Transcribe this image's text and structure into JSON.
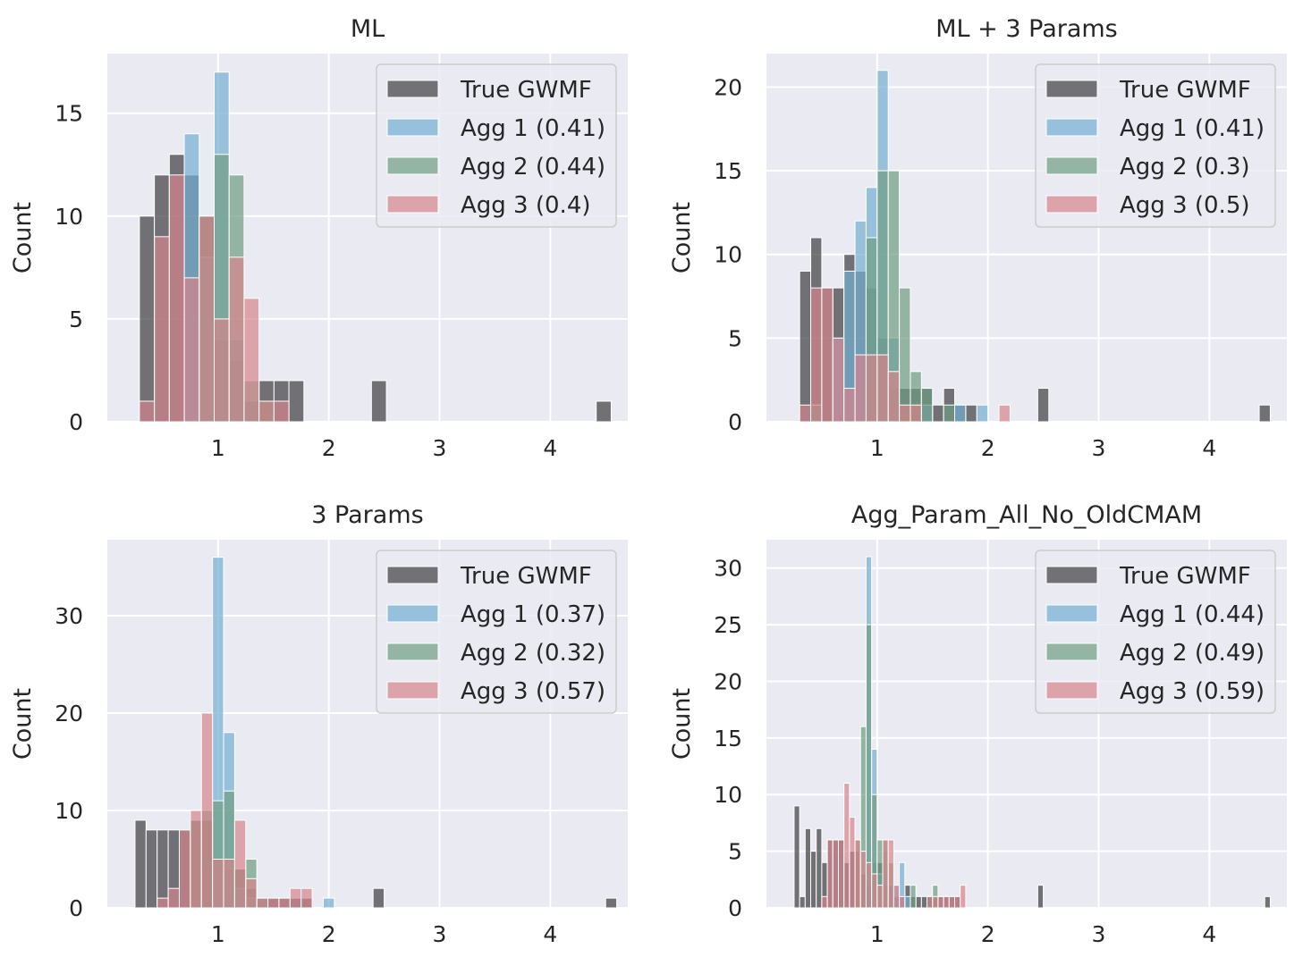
{
  "colors": {
    "panel_bg": "#EAEAF2",
    "grid": "#FFFFFF",
    "series": [
      "#3d3d40",
      "#74aed1",
      "#6f9c81",
      "#d7858b"
    ],
    "bar_alpha": 0.7,
    "bar_edge": "#FFFFFF",
    "legend_bg": "#EAEAF2",
    "legend_edge": "#CCCCCC"
  },
  "chart_data": [
    {
      "type": "bar",
      "title": "ML",
      "xlabel": "",
      "ylabel": "Count",
      "xlim": [
        0.0,
        4.7
      ],
      "ylim": [
        0,
        17.9
      ],
      "xticks": [
        1,
        2,
        3,
        4
      ],
      "yticks": [
        0,
        5,
        10,
        15
      ],
      "legend": "top-right",
      "series": [
        {
          "name": "True GWMF",
          "bin_width": 0.135,
          "bins": [
            [
              0.29,
              10
            ],
            [
              0.425,
              12
            ],
            [
              0.56,
              13
            ],
            [
              0.695,
              12
            ],
            [
              0.83,
              10
            ],
            [
              0.965,
              4
            ],
            [
              1.1,
              3
            ],
            [
              1.235,
              1
            ],
            [
              1.37,
              2
            ],
            [
              1.505,
              2
            ],
            [
              1.64,
              2
            ],
            [
              2.385,
              2
            ],
            [
              4.415,
              1
            ]
          ]
        },
        {
          "name": "Agg 1 (0.41)",
          "bin_width": 0.135,
          "bins": [
            [
              0.695,
              14
            ],
            [
              0.83,
              8
            ],
            [
              0.965,
              17
            ],
            [
              1.1,
              4
            ],
            [
              1.235,
              1
            ]
          ]
        },
        {
          "name": "Agg 2 (0.44)",
          "bin_width": 0.135,
          "bins": [
            [
              0.83,
              10
            ],
            [
              0.965,
              13
            ],
            [
              1.1,
              12
            ],
            [
              1.235,
              2
            ],
            [
              1.37,
              1
            ]
          ]
        },
        {
          "name": "Agg 3 (0.4)",
          "bin_width": 0.135,
          "bins": [
            [
              0.29,
              1
            ],
            [
              0.425,
              9
            ],
            [
              0.56,
              12
            ],
            [
              0.695,
              7
            ],
            [
              0.83,
              10
            ],
            [
              0.965,
              5
            ],
            [
              1.1,
              8
            ],
            [
              1.235,
              6
            ],
            [
              1.37,
              1
            ],
            [
              1.505,
              1
            ]
          ]
        }
      ]
    },
    {
      "type": "bar",
      "title": "ML + 3 Params",
      "xlabel": "",
      "ylabel": "Count",
      "xlim": [
        0.0,
        4.7
      ],
      "ylim": [
        0,
        22
      ],
      "xticks": [
        1,
        2,
        3,
        4
      ],
      "yticks": [
        0,
        5,
        10,
        15,
        20
      ],
      "legend": "top-right",
      "series": [
        {
          "name": "True GWMF",
          "bin_width": 0.1,
          "bins": [
            [
              0.3,
              9
            ],
            [
              0.4,
              11
            ],
            [
              0.5,
              8
            ],
            [
              0.6,
              8
            ],
            [
              0.7,
              10
            ],
            [
              0.8,
              9
            ],
            [
              0.9,
              8
            ],
            [
              1.0,
              5
            ],
            [
              1.1,
              2
            ],
            [
              1.2,
              2
            ],
            [
              1.3,
              2
            ],
            [
              1.4,
              2
            ],
            [
              1.5,
              1
            ],
            [
              1.6,
              2
            ],
            [
              1.7,
              1
            ],
            [
              1.8,
              1
            ],
            [
              2.45,
              2
            ],
            [
              4.45,
              1
            ]
          ]
        },
        {
          "name": "Agg 1 (0.41)",
          "bin_width": 0.1,
          "bins": [
            [
              0.6,
              5
            ],
            [
              0.7,
              9
            ],
            [
              0.8,
              12
            ],
            [
              0.9,
              14
            ],
            [
              1.0,
              21
            ],
            [
              1.1,
              5
            ],
            [
              1.4,
              1
            ],
            [
              1.7,
              1
            ],
            [
              1.9,
              1
            ]
          ]
        },
        {
          "name": "Agg 2 (0.3)",
          "bin_width": 0.1,
          "bins": [
            [
              0.4,
              1
            ],
            [
              0.9,
              11
            ],
            [
              1.0,
              15
            ],
            [
              1.1,
              15
            ],
            [
              1.2,
              8
            ],
            [
              1.3,
              3
            ],
            [
              1.4,
              2
            ],
            [
              1.6,
              1
            ]
          ]
        },
        {
          "name": "Agg 3 (0.5)",
          "bin_width": 0.1,
          "bins": [
            [
              0.3,
              1
            ],
            [
              0.4,
              8
            ],
            [
              0.5,
              8
            ],
            [
              0.6,
              5
            ],
            [
              0.7,
              2
            ],
            [
              0.8,
              4
            ],
            [
              0.9,
              4
            ],
            [
              1.0,
              4
            ],
            [
              1.1,
              3
            ],
            [
              1.2,
              1
            ],
            [
              1.3,
              1
            ],
            [
              2.1,
              1
            ]
          ]
        }
      ]
    },
    {
      "type": "bar",
      "title": "3 Params",
      "xlabel": "",
      "ylabel": "Count",
      "xlim": [
        0.0,
        4.7
      ],
      "ylim": [
        0,
        37.8
      ],
      "xticks": [
        1,
        2,
        3,
        4
      ],
      "yticks": [
        0,
        10,
        20,
        30
      ],
      "legend": "top-right",
      "series": [
        {
          "name": "True GWMF",
          "bin_width": 0.1,
          "bins": [
            [
              0.25,
              9
            ],
            [
              0.35,
              8
            ],
            [
              0.45,
              8
            ],
            [
              0.55,
              8
            ],
            [
              0.65,
              8
            ],
            [
              0.75,
              9
            ],
            [
              0.85,
              9
            ],
            [
              0.95,
              5
            ],
            [
              1.05,
              4
            ],
            [
              1.15,
              4
            ],
            [
              1.25,
              2
            ],
            [
              1.35,
              1
            ],
            [
              1.45,
              1
            ],
            [
              1.55,
              1
            ],
            [
              1.65,
              1
            ],
            [
              1.75,
              1
            ],
            [
              2.4,
              2
            ],
            [
              4.5,
              1
            ]
          ]
        },
        {
          "name": "Agg 1 (0.37)",
          "bin_width": 0.1,
          "bins": [
            [
              0.95,
              36
            ],
            [
              1.05,
              18
            ],
            [
              1.15,
              2
            ],
            [
              1.25,
              1
            ],
            [
              1.95,
              1
            ]
          ]
        },
        {
          "name": "Agg 2 (0.32)",
          "bin_width": 0.1,
          "bins": [
            [
              0.75,
              9
            ],
            [
              0.85,
              10
            ],
            [
              0.95,
              11
            ],
            [
              1.05,
              12
            ],
            [
              1.15,
              4
            ],
            [
              1.25,
              5
            ],
            [
              1.35,
              1
            ]
          ]
        },
        {
          "name": "Agg 3 (0.57)",
          "bin_width": 0.1,
          "bins": [
            [
              0.45,
              1
            ],
            [
              0.55,
              2
            ],
            [
              0.65,
              8
            ],
            [
              0.75,
              10
            ],
            [
              0.85,
              20
            ],
            [
              0.95,
              5
            ],
            [
              1.05,
              5
            ],
            [
              1.15,
              9
            ],
            [
              1.25,
              3
            ],
            [
              1.35,
              1
            ],
            [
              1.45,
              1
            ],
            [
              1.55,
              1
            ],
            [
              1.65,
              2
            ],
            [
              1.75,
              2
            ]
          ]
        }
      ]
    },
    {
      "type": "bar",
      "title": "Agg_Param_All_No_OldCMAM",
      "xlabel": "",
      "ylabel": "Count",
      "xlim": [
        0.0,
        4.7
      ],
      "ylim": [
        0,
        32.5
      ],
      "xticks": [
        1,
        2,
        3,
        4
      ],
      "yticks": [
        0,
        5,
        10,
        15,
        20,
        25,
        30
      ],
      "legend": "top-right",
      "series": [
        {
          "name": "True GWMF",
          "bin_width": 0.05,
          "bins": [
            [
              0.25,
              9
            ],
            [
              0.3,
              1
            ],
            [
              0.35,
              7
            ],
            [
              0.4,
              5
            ],
            [
              0.45,
              7
            ],
            [
              0.5,
              4
            ],
            [
              0.55,
              6
            ],
            [
              0.6,
              6
            ],
            [
              0.65,
              6
            ],
            [
              0.7,
              4
            ],
            [
              0.75,
              5
            ],
            [
              0.8,
              5
            ],
            [
              0.85,
              3
            ],
            [
              0.9,
              2
            ],
            [
              0.95,
              4
            ],
            [
              1.0,
              4
            ],
            [
              1.05,
              2
            ],
            [
              1.1,
              2
            ],
            [
              1.15,
              1
            ],
            [
              1.2,
              1
            ],
            [
              1.25,
              2
            ],
            [
              1.3,
              1
            ],
            [
              1.35,
              1
            ],
            [
              1.4,
              1
            ],
            [
              1.45,
              1
            ],
            [
              1.5,
              1
            ],
            [
              1.55,
              1
            ],
            [
              1.6,
              1
            ],
            [
              1.65,
              1
            ],
            [
              1.7,
              1
            ],
            [
              2.45,
              2
            ],
            [
              4.5,
              1
            ]
          ]
        },
        {
          "name": "Agg 1 (0.44)",
          "bin_width": 0.05,
          "bins": [
            [
              0.9,
              31
            ],
            [
              0.95,
              14
            ],
            [
              1.0,
              3
            ],
            [
              1.05,
              5
            ],
            [
              1.1,
              2
            ],
            [
              1.15,
              2
            ],
            [
              1.2,
              4
            ],
            [
              1.25,
              1
            ]
          ]
        },
        {
          "name": "Agg 2 (0.49)",
          "bin_width": 0.05,
          "bins": [
            [
              0.8,
              6
            ],
            [
              0.85,
              16
            ],
            [
              0.9,
              25
            ],
            [
              0.95,
              10
            ],
            [
              1.0,
              6
            ],
            [
              1.05,
              6
            ],
            [
              1.1,
              4
            ],
            [
              1.3,
              2
            ],
            [
              1.5,
              2
            ]
          ]
        },
        {
          "name": "Agg 3 (0.59)",
          "bin_width": 0.05,
          "bins": [
            [
              0.5,
              1
            ],
            [
              0.55,
              6
            ],
            [
              0.6,
              6
            ],
            [
              0.65,
              6
            ],
            [
              0.7,
              11
            ],
            [
              0.75,
              8
            ],
            [
              0.8,
              6
            ],
            [
              0.85,
              5
            ],
            [
              0.9,
              4
            ],
            [
              0.95,
              3
            ],
            [
              1.0,
              2
            ],
            [
              1.05,
              6
            ],
            [
              1.1,
              6
            ],
            [
              1.15,
              2
            ],
            [
              1.2,
              1
            ],
            [
              1.45,
              1
            ],
            [
              1.5,
              1
            ],
            [
              1.55,
              1
            ],
            [
              1.6,
              1
            ],
            [
              1.65,
              1
            ],
            [
              1.7,
              1
            ],
            [
              1.75,
              2
            ]
          ]
        }
      ]
    }
  ]
}
